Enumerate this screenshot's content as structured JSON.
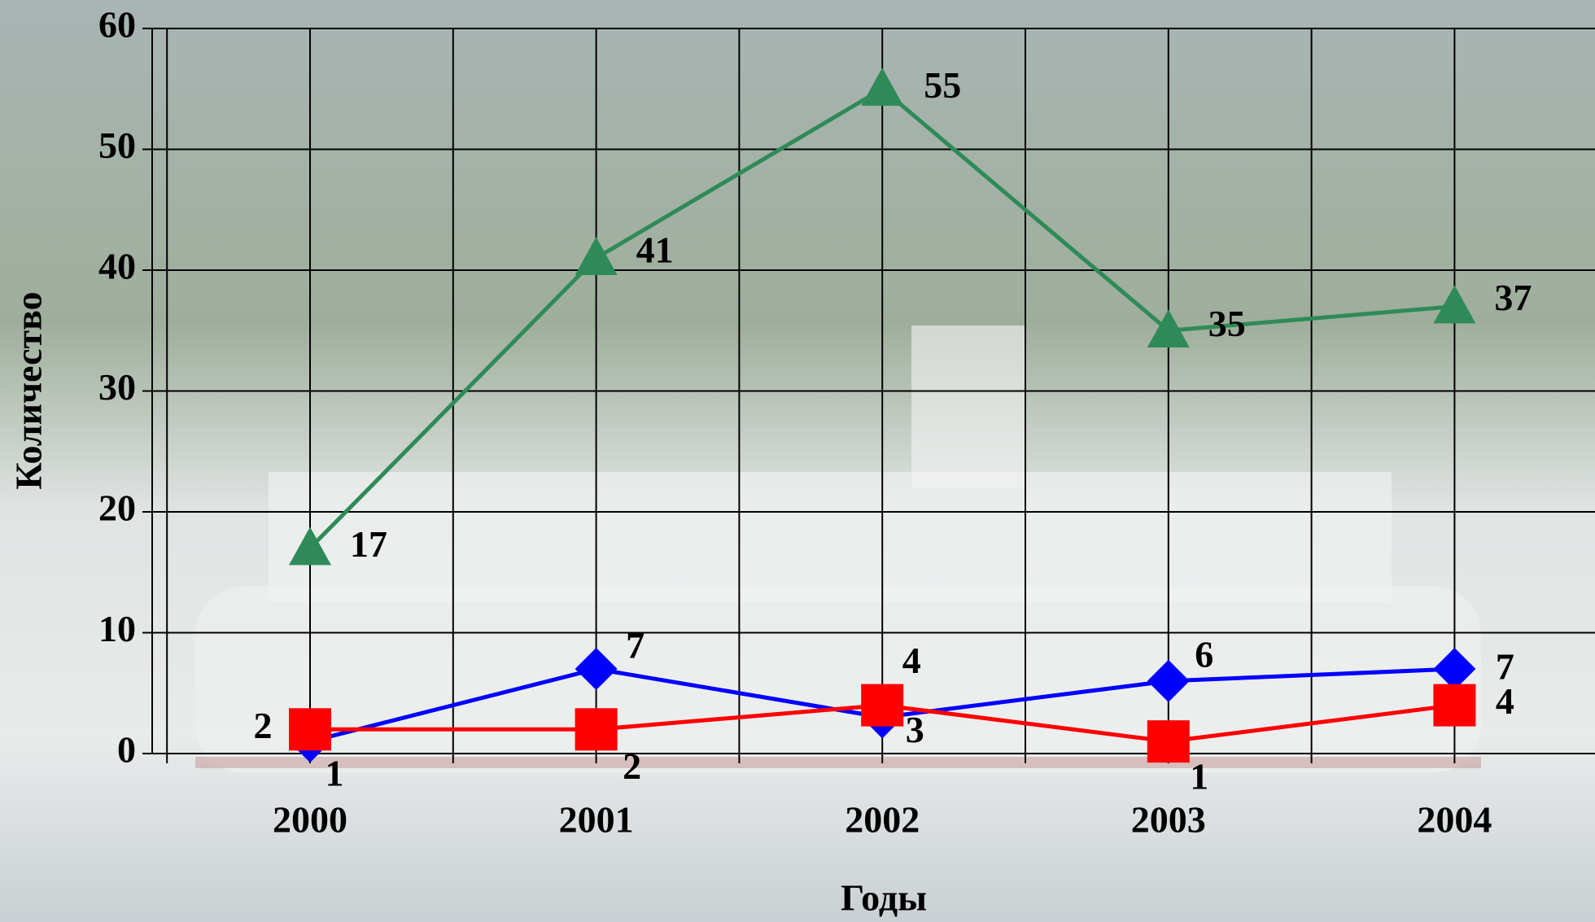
{
  "chart_data": {
    "type": "line",
    "y_label": "Количество",
    "x_label": "Годы",
    "categories": [
      "2000",
      "2001",
      "2002",
      "2003",
      "2004"
    ],
    "series": [
      {
        "color": "#2e8b57",
        "marker": "triangle",
        "values": [
          17,
          41,
          55,
          35,
          37
        ]
      },
      {
        "color": "#0000ff",
        "marker": "diamond",
        "values": [
          1,
          7,
          3,
          6,
          7
        ]
      },
      {
        "color": "#ff0000",
        "marker": "square",
        "values": [
          2,
          2,
          4,
          1,
          4
        ]
      }
    ],
    "ylim": [
      0,
      60
    ],
    "yticks": [
      0,
      10,
      20,
      30,
      40,
      50,
      60
    ],
    "grid": true
  }
}
